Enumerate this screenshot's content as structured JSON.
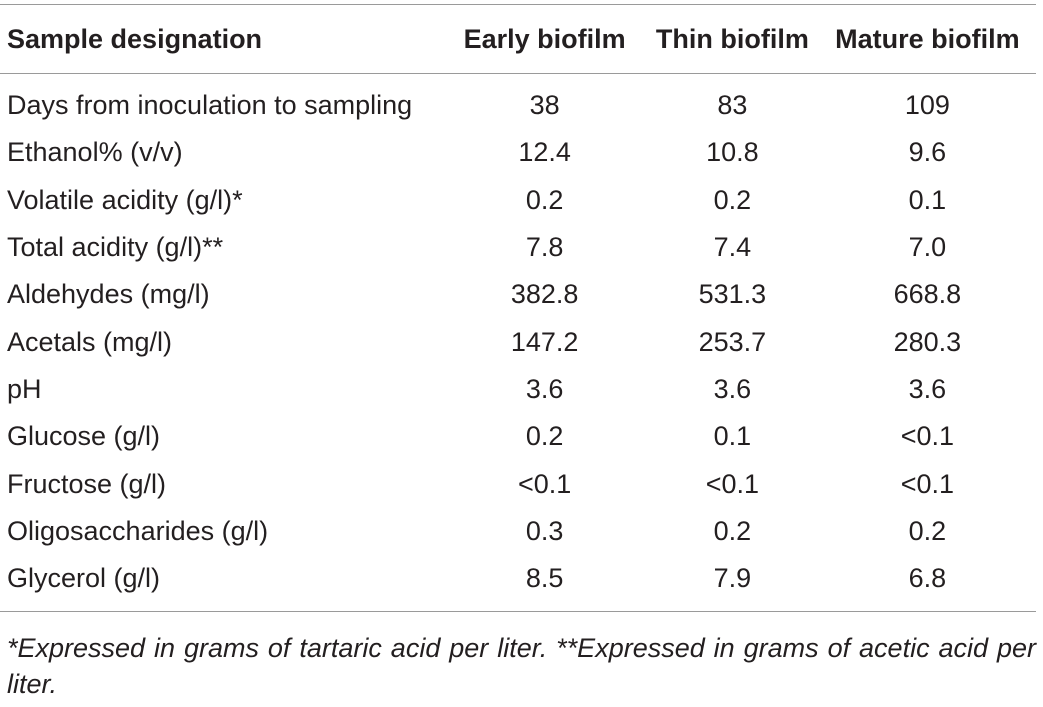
{
  "table": {
    "headers": [
      "Sample designation",
      "Early biofilm",
      "Thin biofilm",
      "Mature biofilm"
    ],
    "rows": [
      [
        "Days from inoculation to sampling",
        "38",
        "83",
        "109"
      ],
      [
        "Ethanol% (v/v)",
        "12.4",
        "10.8",
        "9.6"
      ],
      [
        "Volatile acidity (g/l)*",
        "0.2",
        "0.2",
        "0.1"
      ],
      [
        "Total acidity (g/l)**",
        "7.8",
        "7.4",
        "7.0"
      ],
      [
        "Aldehydes (mg/l)",
        "382.8",
        "531.3",
        "668.8"
      ],
      [
        "Acetals (mg/l)",
        "147.2",
        "253.7",
        "280.3"
      ],
      [
        "pH",
        "3.6",
        "3.6",
        "3.6"
      ],
      [
        "Glucose (g/l)",
        "0.2",
        "0.1",
        "<0.1"
      ],
      [
        "Fructose (g/l)",
        "<0.1",
        "<0.1",
        "<0.1"
      ],
      [
        "Oligosaccharides (g/l)",
        "0.3",
        "0.2",
        "0.2"
      ],
      [
        "Glycerol (g/l)",
        "8.5",
        "7.9",
        "6.8"
      ]
    ]
  },
  "footnote": "*Expressed in grams of tartaric acid per liter. **Expressed in grams of acetic acid per liter."
}
